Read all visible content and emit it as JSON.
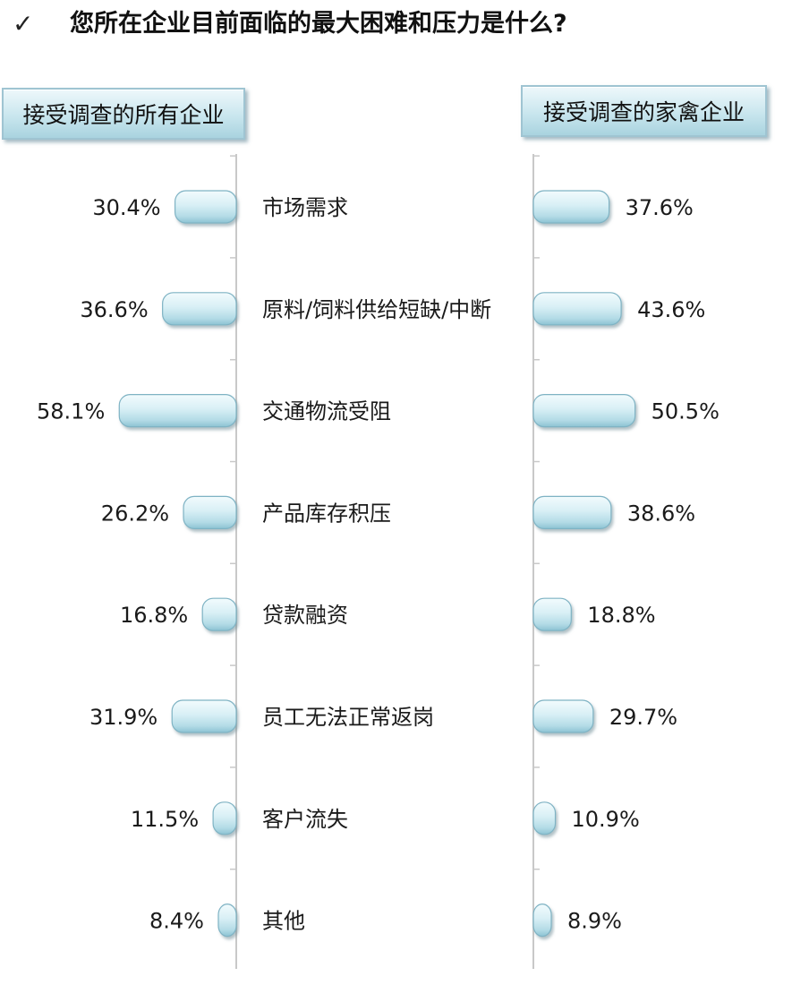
{
  "header": {
    "check_mark": "✓",
    "title": "您所在企业目前面临的最大困难和压力是什么?"
  },
  "groups": {
    "left": "接受调查的所有企业",
    "right": "接受调查的家禽企业"
  },
  "colors": {
    "bar_light": "#f2fbfd",
    "bar_mid": "#c4e5ee",
    "bar_dark": "#8cc3d3",
    "bar_border": "#7fb3c4",
    "axis": "#c8c8c8"
  },
  "chart_data": {
    "type": "bar",
    "orientation": "horizontal-butterfly",
    "title": "您所在企业目前面临的最大困难和压力是什么?",
    "categories": [
      "市场需求",
      "原料/饲料供给短缺/中断",
      "交通物流受阻",
      "产品库存积压",
      "贷款融资",
      "员工无法正常返岗",
      "客户流失",
      "其他"
    ],
    "series": [
      {
        "name": "接受调查的所有企业",
        "side": "left",
        "values": [
          30.4,
          36.6,
          58.1,
          26.2,
          16.8,
          31.9,
          11.5,
          8.4
        ],
        "labels": [
          "30.4%",
          "36.6%",
          "58.1%",
          "26.2%",
          "16.8%",
          "31.9%",
          "11.5%",
          "8.4%"
        ]
      },
      {
        "name": "接受调查的家禽企业",
        "side": "right",
        "values": [
          37.6,
          43.6,
          50.5,
          38.6,
          18.8,
          29.7,
          10.9,
          8.9
        ],
        "labels": [
          "37.6%",
          "43.6%",
          "50.5%",
          "38.6%",
          "18.8%",
          "29.7%",
          "10.9%",
          "8.9%"
        ]
      }
    ],
    "unit": "%",
    "xlim": [
      0,
      60
    ],
    "grid": false,
    "legend": "boxes above each side"
  }
}
